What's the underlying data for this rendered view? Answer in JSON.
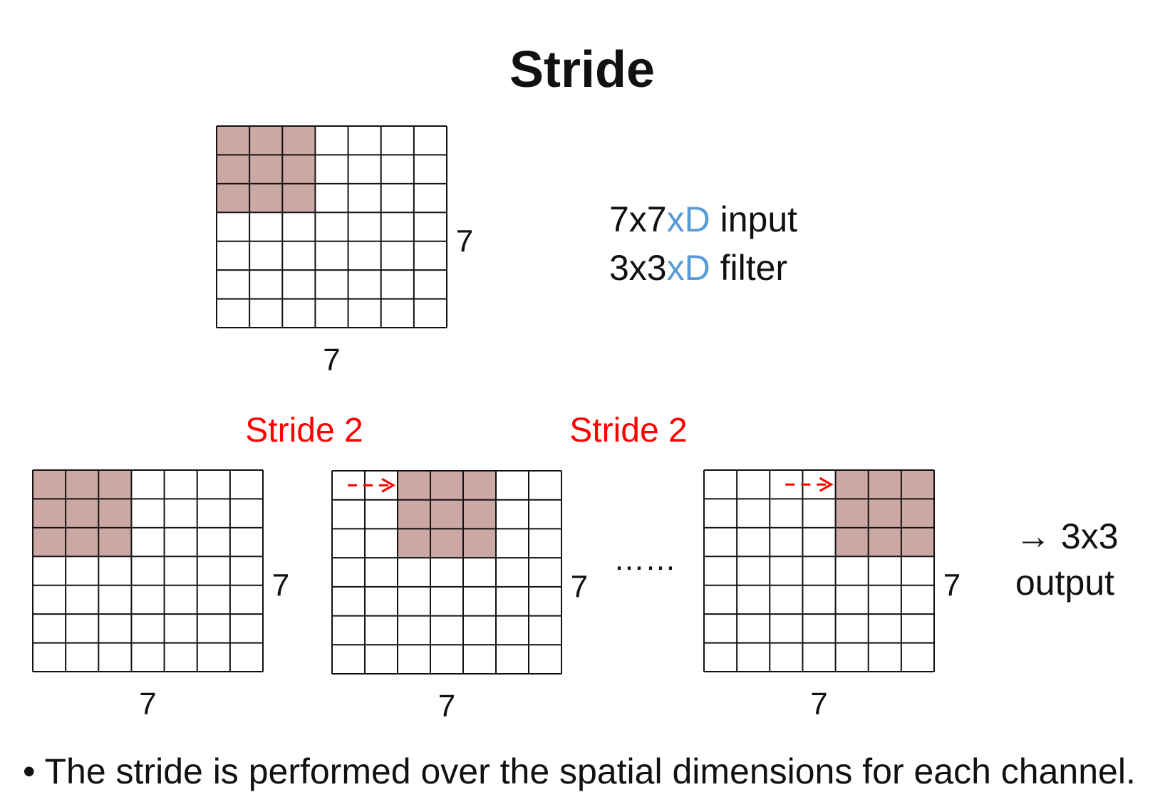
{
  "title": "Stride",
  "input_desc": {
    "prefix": "7x7",
    "accent": "xD",
    "suffix": " input"
  },
  "filter_desc": {
    "prefix": "3x3",
    "accent": "xD",
    "suffix": " filter"
  },
  "accent_color": "#5b9bd5",
  "highlight_color": "#cba8a3",
  "arrow_color": "#ff0000",
  "stride_labels": [
    "Stride 2",
    "Stride 2"
  ],
  "ellipsis": "……",
  "output_label": {
    "line1": "→ 3x3",
    "line2": "output"
  },
  "bullet": "• The stride is performed over the spatial dimensions for each channel.",
  "grids": [
    {
      "id": "top-grid",
      "rows": 7,
      "cols": 7,
      "highlight": {
        "row": 0,
        "col": 0,
        "size": 3
      },
      "width_label": "7",
      "height_label": "7",
      "arrow": false
    },
    {
      "id": "step-1-grid",
      "rows": 7,
      "cols": 7,
      "highlight": {
        "row": 0,
        "col": 0,
        "size": 3
      },
      "width_label": "7",
      "height_label": "7",
      "arrow": false
    },
    {
      "id": "step-2-grid",
      "rows": 7,
      "cols": 7,
      "highlight": {
        "row": 0,
        "col": 2,
        "size": 3
      },
      "width_label": "7",
      "height_label": "7",
      "arrow": true
    },
    {
      "id": "step-last-grid",
      "rows": 7,
      "cols": 7,
      "highlight": {
        "row": 0,
        "col": 4,
        "size": 3
      },
      "width_label": "7",
      "height_label": "7",
      "arrow": true
    }
  ]
}
